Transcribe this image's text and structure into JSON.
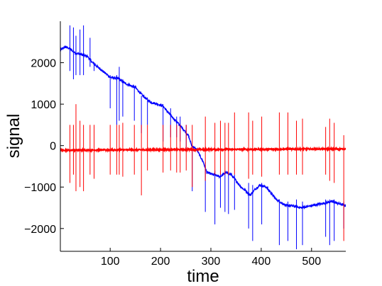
{
  "chart_data": {
    "type": "line",
    "xlabel": "time",
    "ylabel": "signal",
    "xlim": [
      1,
      568
    ],
    "ylim": [
      -2550,
      3000
    ],
    "x_ticks": [
      100,
      200,
      300,
      400,
      500
    ],
    "y_ticks": [
      -2000,
      -1000,
      0,
      1000,
      2000
    ],
    "x_tick_labels": [
      "100",
      "200",
      "300",
      "400",
      "500"
    ],
    "y_tick_labels": [
      "−2000",
      "−1000",
      "0",
      "1000",
      "2000"
    ],
    "grid": false,
    "series": [
      {
        "color": "#0000ff",
        "baseline": {
          "x": [
            1,
            10,
            18,
            30,
            42,
            55,
            65,
            80,
            90,
            100,
            115,
            130,
            150,
            165,
            180,
            195,
            205,
            215,
            230,
            245,
            255,
            262,
            272,
            285,
            292,
            305,
            318,
            330,
            340,
            350,
            360,
            370,
            378,
            388,
            398,
            410,
            430,
            450,
            460,
            480,
            500,
            520,
            540,
            560,
            568
          ],
          "y": [
            2300,
            2380,
            2350,
            2240,
            2200,
            2150,
            2000,
            1850,
            1750,
            1650,
            1620,
            1500,
            1400,
            1200,
            1050,
            1000,
            950,
            800,
            600,
            400,
            250,
            0,
            -100,
            -400,
            -650,
            -700,
            -750,
            -650,
            -700,
            -850,
            -1000,
            -1100,
            -1200,
            -1050,
            -950,
            -1000,
            -1300,
            -1450,
            -1450,
            -1500,
            -1450,
            -1400,
            -1350,
            -1420,
            -1450
          ]
        },
        "spikes": [
          {
            "x": 20,
            "low": 1800,
            "high": 2900
          },
          {
            "x": 27,
            "low": 1600,
            "high": 2850
          },
          {
            "x": 32,
            "low": 1700,
            "high": 2650
          },
          {
            "x": 40,
            "low": 1700,
            "high": 2800
          },
          {
            "x": 47,
            "low": 1700,
            "high": 2900
          },
          {
            "x": 60,
            "low": 1900,
            "high": 2600
          },
          {
            "x": 68,
            "low": 1800,
            "high": 2000
          },
          {
            "x": 100,
            "low": 900,
            "high": 1700
          },
          {
            "x": 113,
            "low": 500,
            "high": 1700
          },
          {
            "x": 118,
            "low": 600,
            "high": 1900
          },
          {
            "x": 125,
            "low": 700,
            "high": 1600
          },
          {
            "x": 148,
            "low": 600,
            "high": 1400
          },
          {
            "x": 162,
            "low": 300,
            "high": 1200
          },
          {
            "x": 174,
            "low": 500,
            "high": 1100
          },
          {
            "x": 205,
            "low": 100,
            "high": 1000
          },
          {
            "x": 220,
            "low": 200,
            "high": 900
          },
          {
            "x": 232,
            "low": 200,
            "high": 700
          },
          {
            "x": 239,
            "low": 100,
            "high": 700
          },
          {
            "x": 251,
            "low": -100,
            "high": 500
          },
          {
            "x": 263,
            "low": -1100,
            "high": -50
          },
          {
            "x": 289,
            "low": -1600,
            "high": -400
          },
          {
            "x": 308,
            "low": -1900,
            "high": -600
          },
          {
            "x": 319,
            "low": -1500,
            "high": -600
          },
          {
            "x": 328,
            "low": -1600,
            "high": -600
          },
          {
            "x": 335,
            "low": -1650,
            "high": -700
          },
          {
            "x": 347,
            "low": -1550,
            "high": -700
          },
          {
            "x": 375,
            "low": -2000,
            "high": -900
          },
          {
            "x": 383,
            "low": -2300,
            "high": -950
          },
          {
            "x": 401,
            "low": -1900,
            "high": -900
          },
          {
            "x": 436,
            "low": -2400,
            "high": -1300
          },
          {
            "x": 453,
            "low": -2300,
            "high": -1350
          },
          {
            "x": 470,
            "low": -2500,
            "high": -1300
          },
          {
            "x": 482,
            "low": -2400,
            "high": -1350
          },
          {
            "x": 528,
            "low": -2200,
            "high": -1300
          },
          {
            "x": 536,
            "low": -2400,
            "high": -1300
          },
          {
            "x": 545,
            "low": -2300,
            "high": -1300
          },
          {
            "x": 564,
            "low": -2000,
            "high": -1350
          }
        ]
      },
      {
        "color": "#ff0000",
        "baseline": {
          "x": [
            1,
            568
          ],
          "y": [
            -110,
            -80
          ]
        },
        "spikes": [
          {
            "x": 1,
            "low": -400,
            "high": 500
          },
          {
            "x": 20,
            "low": -900,
            "high": 500
          },
          {
            "x": 27,
            "low": -700,
            "high": 500
          },
          {
            "x": 32,
            "low": -1100,
            "high": 1000
          },
          {
            "x": 40,
            "low": -1000,
            "high": 600
          },
          {
            "x": 47,
            "low": -1100,
            "high": 500
          },
          {
            "x": 60,
            "low": -700,
            "high": 500
          },
          {
            "x": 68,
            "low": -800,
            "high": 500
          },
          {
            "x": 100,
            "low": -700,
            "high": 500
          },
          {
            "x": 113,
            "low": -700,
            "high": 500
          },
          {
            "x": 118,
            "low": -700,
            "high": 500
          },
          {
            "x": 125,
            "low": -750,
            "high": 550
          },
          {
            "x": 148,
            "low": -700,
            "high": 500
          },
          {
            "x": 162,
            "low": -1200,
            "high": 500
          },
          {
            "x": 174,
            "low": -600,
            "high": 500
          },
          {
            "x": 205,
            "low": -650,
            "high": 500
          },
          {
            "x": 220,
            "low": -600,
            "high": 500
          },
          {
            "x": 232,
            "low": -650,
            "high": 500
          },
          {
            "x": 239,
            "low": -650,
            "high": 500
          },
          {
            "x": 251,
            "low": -600,
            "high": 500
          },
          {
            "x": 263,
            "low": -1000,
            "high": 500
          },
          {
            "x": 289,
            "low": -850,
            "high": 700
          },
          {
            "x": 308,
            "low": -700,
            "high": 550
          },
          {
            "x": 319,
            "low": -700,
            "high": 600
          },
          {
            "x": 328,
            "low": -700,
            "high": 550
          },
          {
            "x": 335,
            "low": -700,
            "high": 550
          },
          {
            "x": 347,
            "low": -700,
            "high": 800
          },
          {
            "x": 375,
            "low": -800,
            "high": 800
          },
          {
            "x": 383,
            "low": -700,
            "high": 600
          },
          {
            "x": 401,
            "low": -750,
            "high": 700
          },
          {
            "x": 436,
            "low": -700,
            "high": 800
          },
          {
            "x": 453,
            "low": -700,
            "high": 800
          },
          {
            "x": 470,
            "low": -700,
            "high": 600
          },
          {
            "x": 482,
            "low": -700,
            "high": 650
          },
          {
            "x": 528,
            "low": -700,
            "high": 450
          },
          {
            "x": 536,
            "low": -850,
            "high": 650
          },
          {
            "x": 545,
            "low": -900,
            "high": 550
          },
          {
            "x": 564,
            "low": -2300,
            "high": 250
          }
        ]
      }
    ]
  }
}
